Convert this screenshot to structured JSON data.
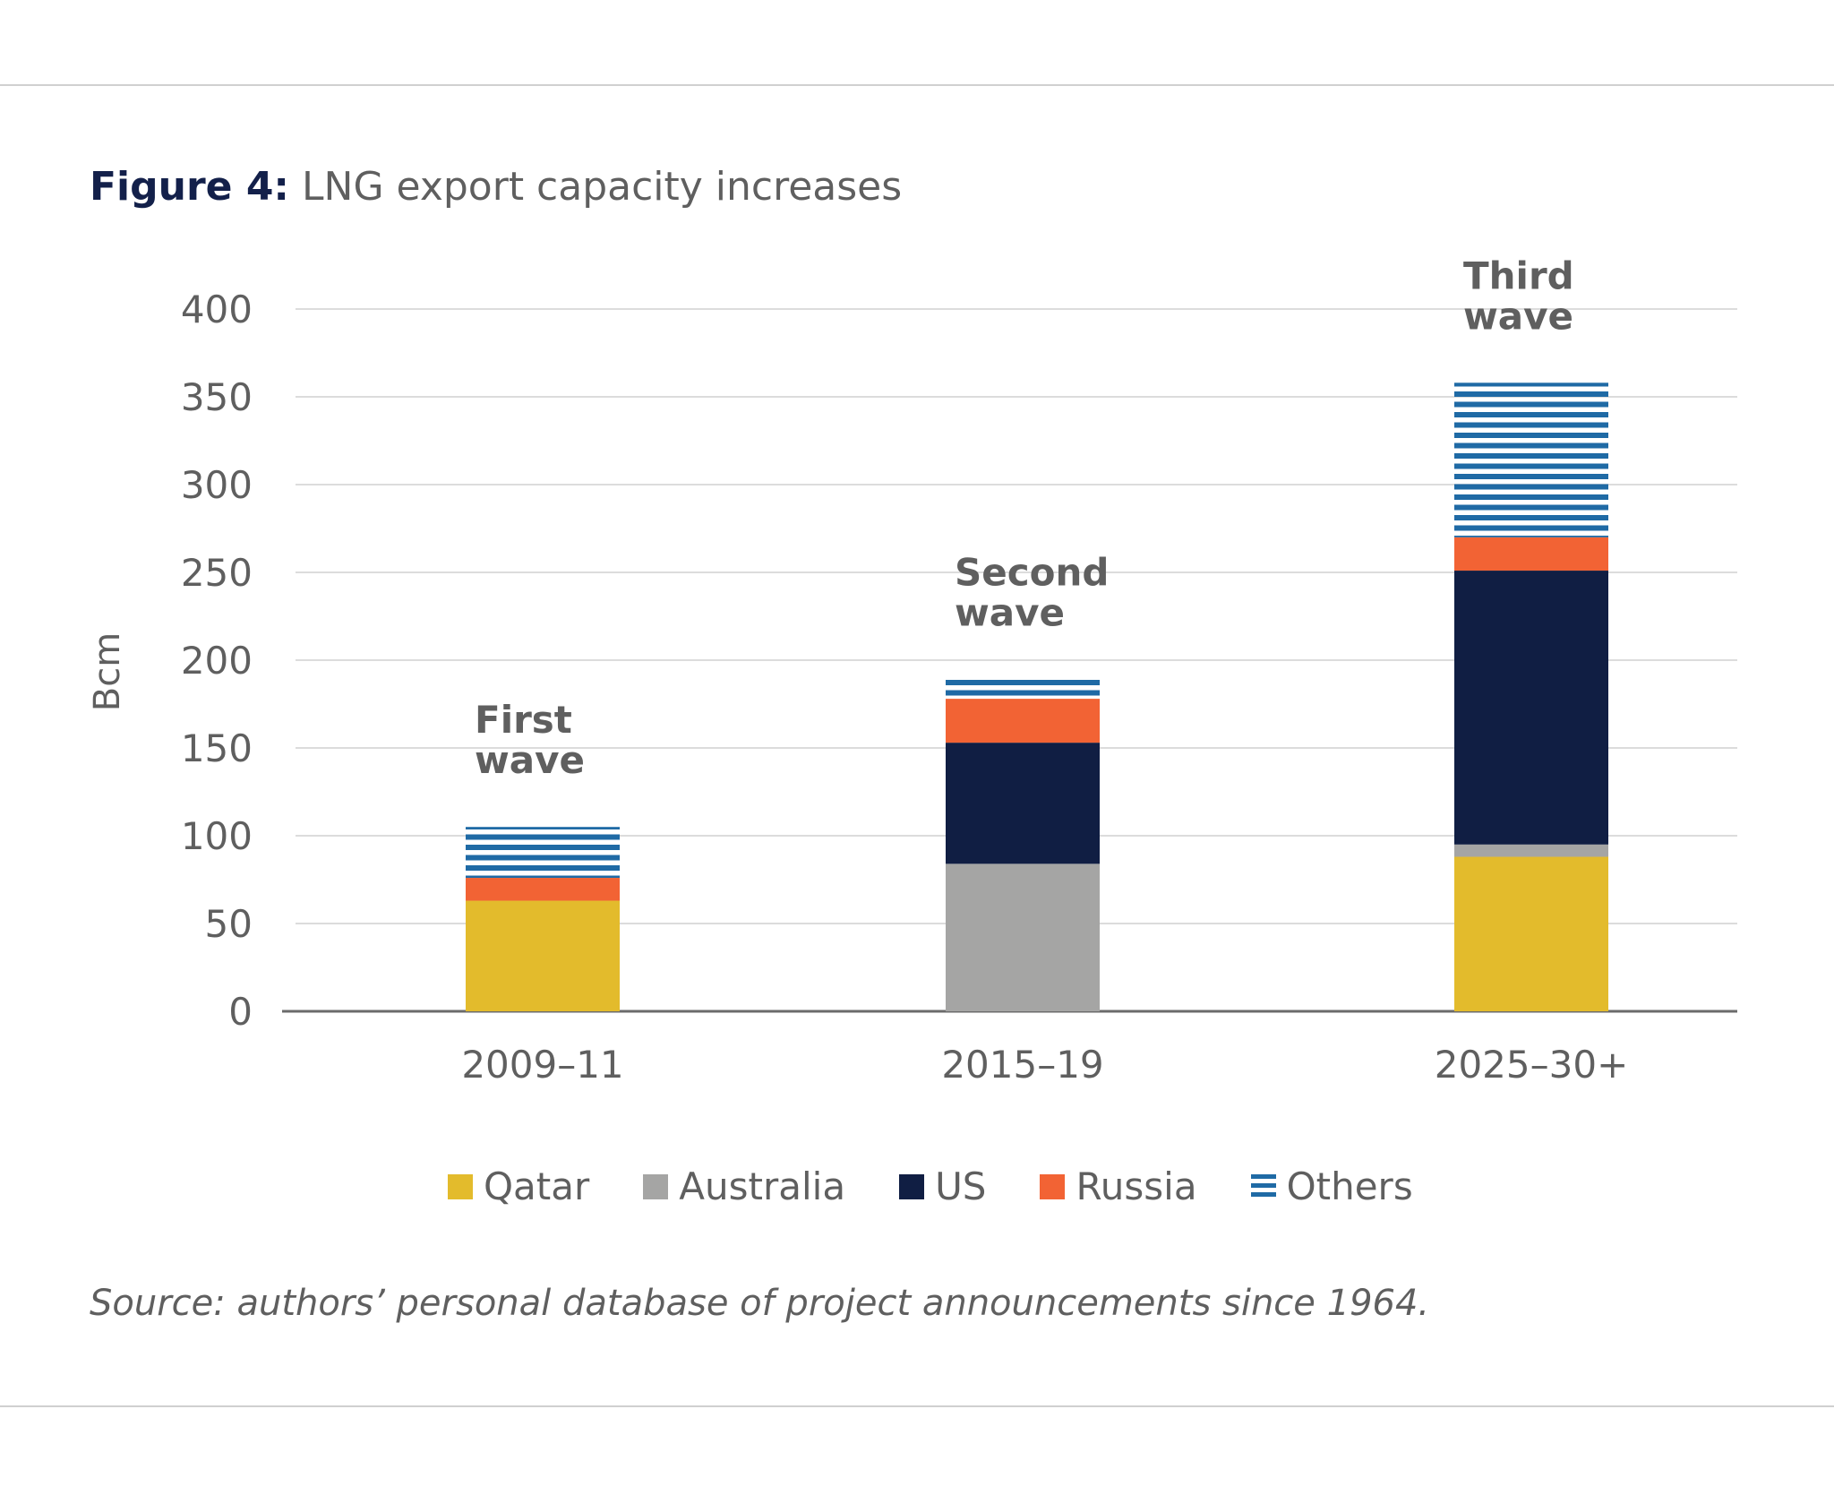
{
  "title": {
    "prefix": "Figure 4:",
    "text": "LNG export capacity increases"
  },
  "source": "Source: authors’ personal database of project announcements since 1964.",
  "chart_data": {
    "type": "bar",
    "stacked": true,
    "categories": [
      "2009–11",
      "2015–19",
      "2025–30+"
    ],
    "annotations": [
      [
        "First",
        "wave"
      ],
      [
        "Second",
        "wave"
      ],
      [
        "Third",
        "wave"
      ]
    ],
    "ylabel": "Bcm",
    "xlabel": "",
    "ylim": [
      0,
      400
    ],
    "yticks": [
      0,
      50,
      100,
      150,
      200,
      250,
      300,
      350,
      400
    ],
    "grid": true,
    "legend_position": "bottom",
    "series": [
      {
        "name": "Qatar",
        "values": [
          63,
          0,
          88
        ],
        "color": "#e3bb2c",
        "pattern": "solid"
      },
      {
        "name": "Australia",
        "values": [
          0,
          84,
          7
        ],
        "color": "#a5a5a4",
        "pattern": "solid"
      },
      {
        "name": "US",
        "values": [
          0,
          69,
          156
        ],
        "color": "#101e43",
        "pattern": "solid"
      },
      {
        "name": "Russia",
        "values": [
          13,
          25,
          19
        ],
        "color": "#f26334",
        "pattern": "solid"
      },
      {
        "name": "Others",
        "values": [
          29,
          11,
          88
        ],
        "color": "#1f6aa5",
        "pattern": "horizontal-stripes"
      }
    ]
  }
}
